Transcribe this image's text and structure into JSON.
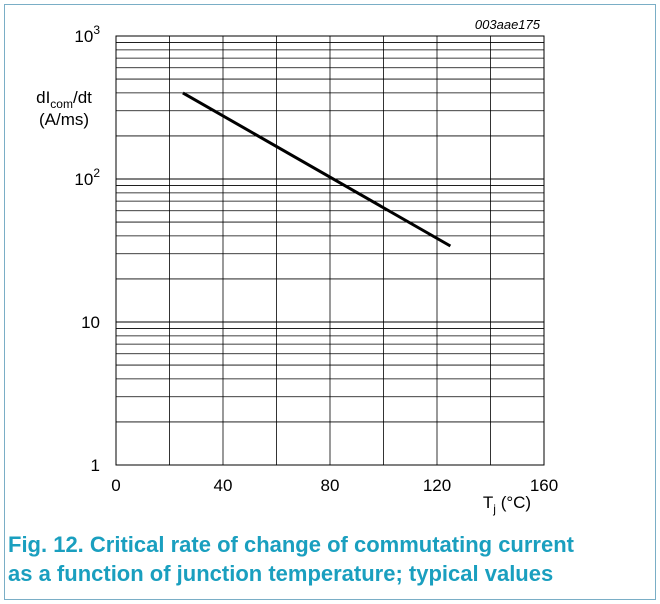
{
  "chart_data": {
    "type": "line",
    "figure_code": "003aae175",
    "ylabel": {
      "main": "dI",
      "sub": "com",
      "tail": "/dt",
      "unit": "(A/ms)"
    },
    "xlabel": {
      "main": "T",
      "sub": "j",
      "unit": " (°C)"
    },
    "x_ticks": [
      "0",
      "40",
      "80",
      "120",
      "160"
    ],
    "x_tick_values": [
      0,
      40,
      80,
      120,
      160
    ],
    "xlim": [
      0,
      160
    ],
    "ylim": [
      1,
      1000
    ],
    "yscale": "log",
    "y_ticks": [
      {
        "value": 1,
        "base": "1",
        "exp": ""
      },
      {
        "value": 10,
        "base": "10",
        "exp": ""
      },
      {
        "value": 100,
        "base": "10",
        "exp": "2"
      },
      {
        "value": 1000,
        "base": "10",
        "exp": "3"
      }
    ],
    "grid": true,
    "series": [
      {
        "x": [
          25,
          125
        ],
        "y": [
          400,
          34
        ]
      }
    ]
  },
  "caption": {
    "line1": "Fig. 12. Critical rate of change of commutating current",
    "line2": "as a function of junction temperature; typical values"
  }
}
